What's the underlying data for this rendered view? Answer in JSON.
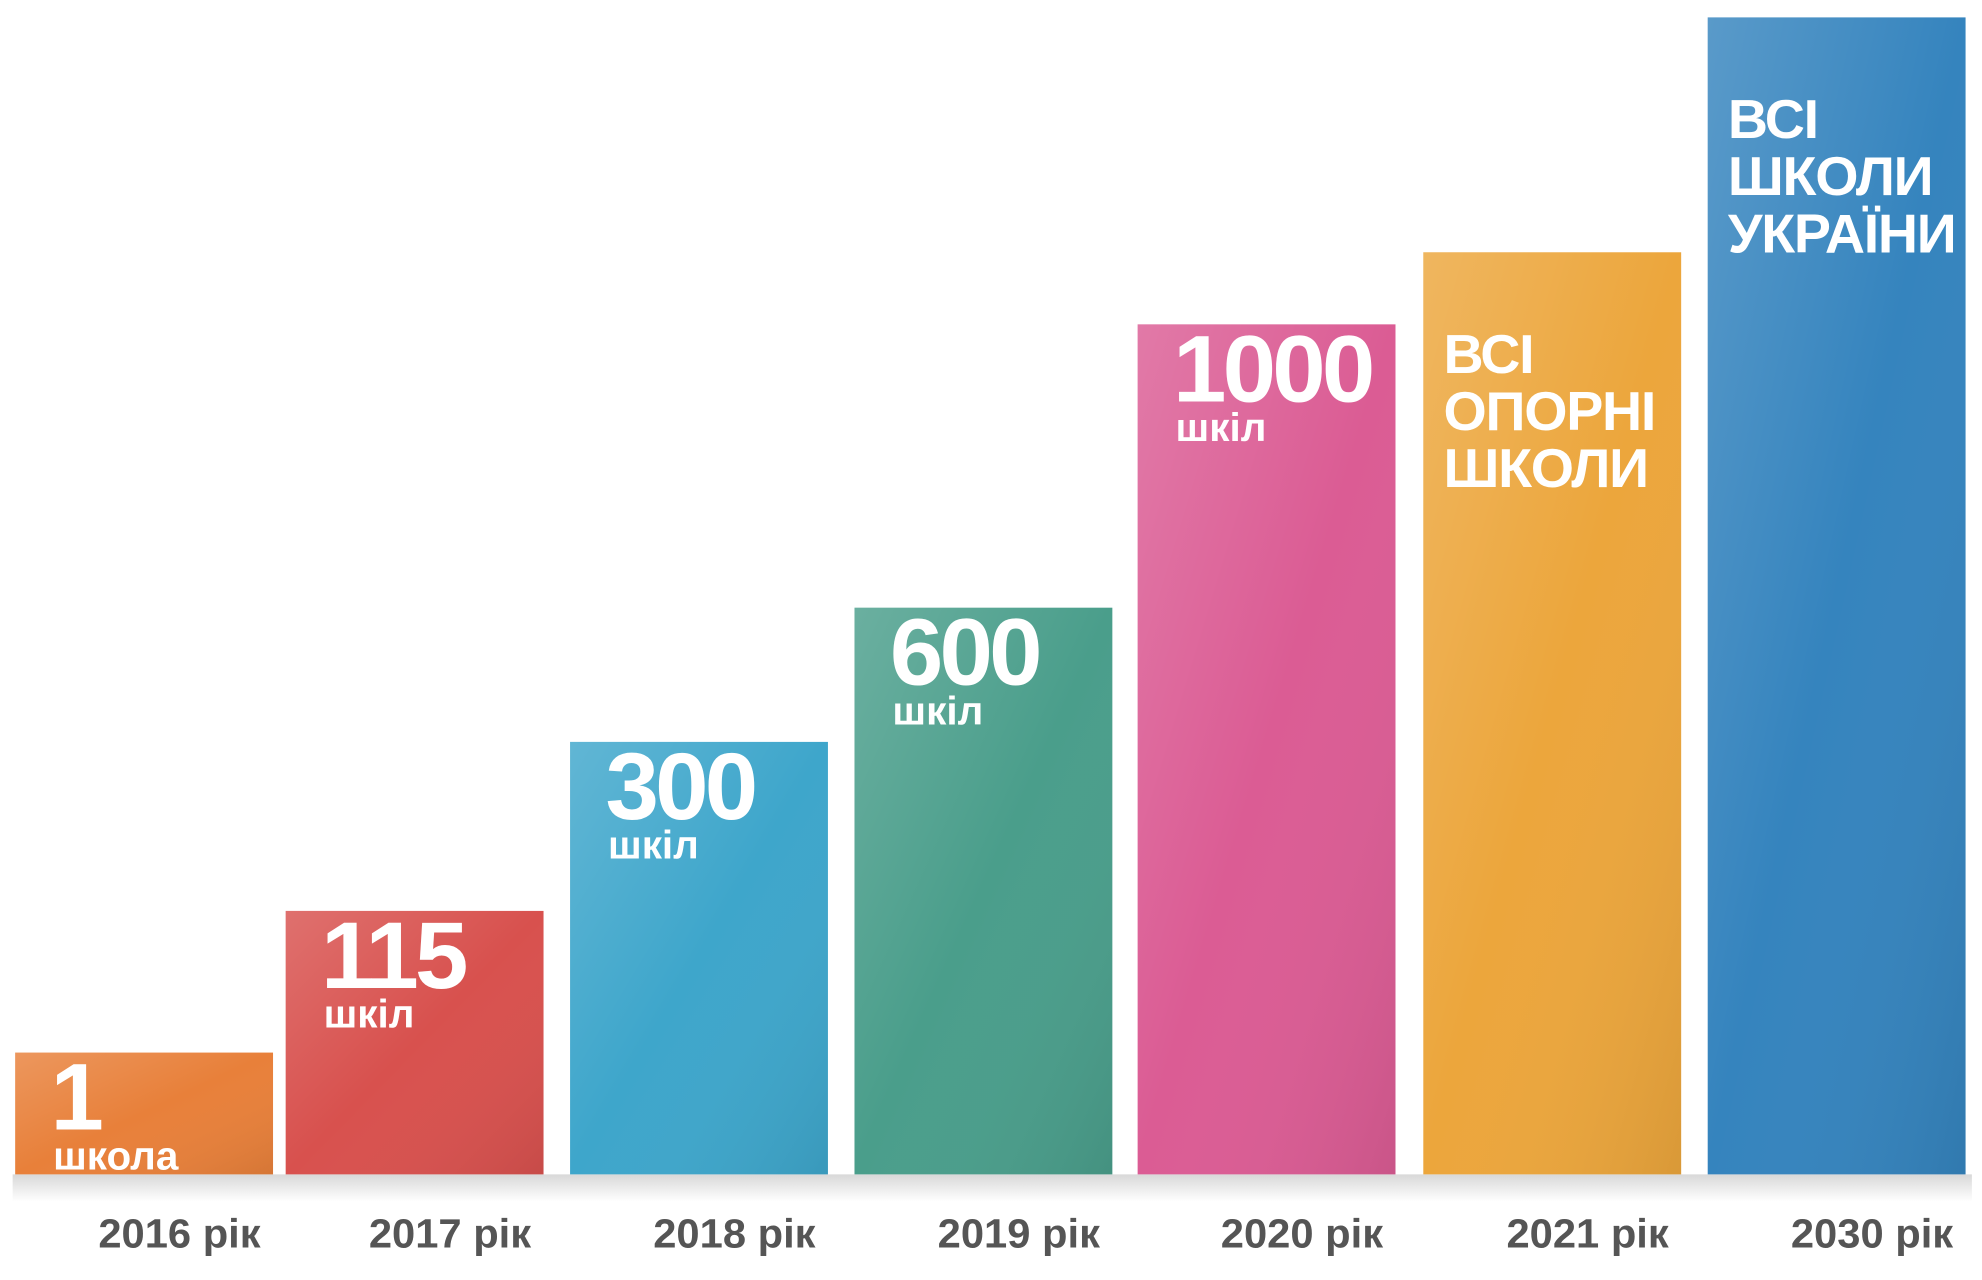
{
  "bars": [
    {
      "year": "2016 рік",
      "number": "1",
      "unit": "школа",
      "color": "#e8803a"
    },
    {
      "year": "2017 рік",
      "number": "115",
      "unit": "шкіл",
      "color": "#d8514e"
    },
    {
      "year": "2018 рік",
      "number": "300",
      "unit": "шкіл",
      "color": "#3ea6cb"
    },
    {
      "year": "2019 рік",
      "number": "600",
      "unit": "шкіл",
      "color": "#4a9e8b"
    },
    {
      "year": "2020 рік",
      "number": "1000",
      "unit": "шкіл",
      "color": "#db5c94"
    },
    {
      "year": "2021 рік",
      "lines": [
        "ВСІ",
        "ОПОРНІ",
        "ШКОЛИ"
      ],
      "color": "#eca63c"
    },
    {
      "year": "2030 рік",
      "lines": [
        "ВСІ",
        "ШКОЛИ",
        "УКРАЇНИ"
      ],
      "color": "#3584be"
    }
  ]
}
